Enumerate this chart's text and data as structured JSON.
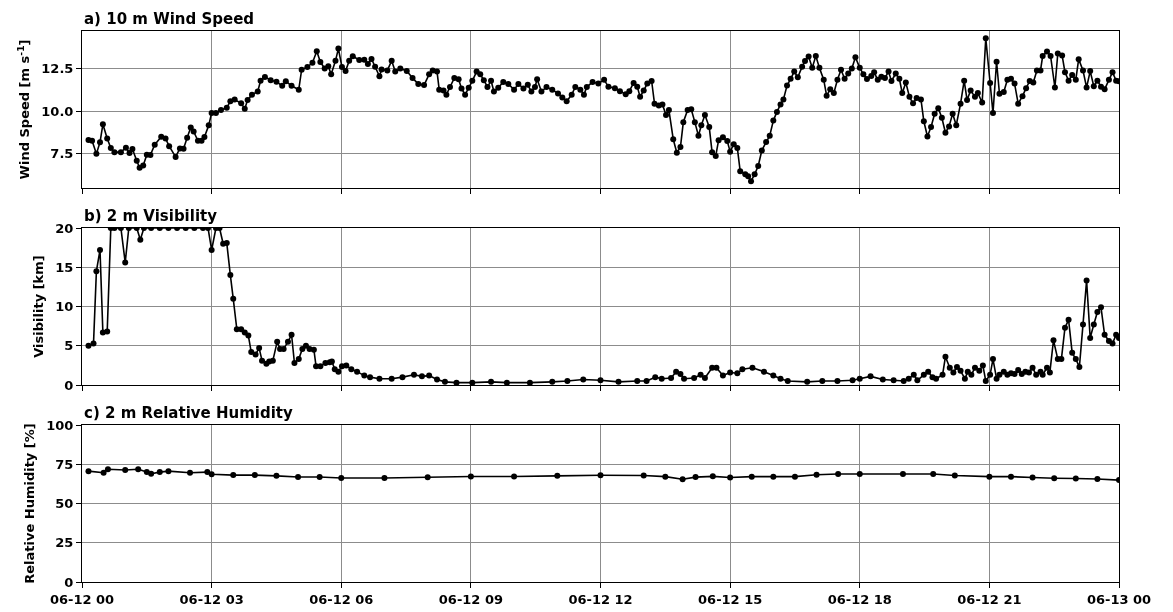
{
  "chart_data": [
    {
      "type": "line",
      "title": "a) 10 m Wind Speed",
      "ylabel": "Wind Speed [m s$^{-1}$]",
      "marker": "circle",
      "line_style": "solid",
      "grid": true,
      "tick_labels": "y",
      "xlim": [
        "--06-12T00:00",
        "--06-13T00:00"
      ],
      "xticks": [
        {
          "value": "--06-12T00:00",
          "label": "06-12 00"
        },
        {
          "value": "--06-12T03:00",
          "label": "06-12 03"
        },
        {
          "value": "--06-12T06:00",
          "label": "06-12 06"
        },
        {
          "value": "--06-12T09:00",
          "label": "06-12 09"
        },
        {
          "value": "--06-12T12:00",
          "label": "06-12 12"
        },
        {
          "value": "--06-12T15:00",
          "label": "06-12 15"
        },
        {
          "value": "--06-12T18:00",
          "label": "06-12 18"
        },
        {
          "value": "--06-12T21:00",
          "label": "06-12 21"
        },
        {
          "value": "--06-13T00:00",
          "label": "06-13 00"
        }
      ],
      "ylim": [
        5.5,
        14.7
      ],
      "yticks": [
        {
          "value": 7.5,
          "label": "7.5"
        },
        {
          "value": 10,
          "label": "10.0"
        },
        {
          "value": 12.5,
          "label": "12.5"
        }
      ],
      "series": [
        {
          "color": "#000000",
          "x": [
            "--06-12T00:09",
            "--06-12T00:14",
            "--06-12T00:20",
            "--06-12T00:25",
            "--06-12T00:29",
            "--06-12T00:35",
            "--06-12T00:40",
            "--06-12T00:45",
            "--06-12T00:54",
            "--06-12T01:01",
            "--06-12T01:06",
            "--06-12T01:10",
            "--06-12T01:16",
            "--06-12T01:20",
            "--06-12T01:25",
            "--06-12T01:30",
            "--06-12T01:35",
            "--06-12T01:41",
            "--06-12T01:50",
            "--06-12T01:56",
            "--06-12T02:01",
            "--06-12T02:10",
            "--06-12T02:16",
            "--06-12T02:21",
            "--06-12T02:26",
            "--06-12T02:31",
            "--06-12T02:35",
            "--06-12T02:41",
            "--06-12T02:46",
            "--06-12T02:50",
            "--06-12T02:56",
            "--06-12T03:00",
            "--06-12T03:06",
            "--06-12T03:13",
            "--06-12T03:21",
            "--06-12T03:26",
            "--06-12T03:32",
            "--06-12T03:41",
            "--06-12T03:46",
            "--06-12T03:50",
            "--06-12T03:56",
            "--06-12T04:04",
            "--06-12T04:08",
            "--06-12T04:14",
            "--06-12T04:22",
            "--06-12T04:30",
            "--06-12T04:38",
            "--06-12T04:43",
            "--06-12T04:51",
            "--06-12T05:01",
            "--06-12T05:05",
            "--06-12T05:13",
            "--06-12T05:20",
            "--06-12T05:26",
            "--06-12T05:31",
            "--06-12T05:37",
            "--06-12T05:42",
            "--06-12T05:46",
            "--06-12T05:52",
            "--06-12T05:56",
            "--06-12T06:01",
            "--06-12T06:06",
            "--06-12T06:11",
            "--06-12T06:16",
            "--06-12T06:25",
            "--06-12T06:32",
            "--06-12T06:37",
            "--06-12T06:42",
            "--06-12T06:47",
            "--06-12T06:53",
            "--06-12T06:56",
            "--06-12T07:04",
            "--06-12T07:10",
            "--06-12T07:15",
            "--06-12T07:22",
            "--06-12T07:31",
            "--06-12T07:39",
            "--06-12T07:47",
            "--06-12T07:55",
            "--06-12T08:02",
            "--06-12T08:07",
            "--06-12T08:13",
            "--06-12T08:16",
            "--06-12T08:22",
            "--06-12T08:26",
            "--06-12T08:31",
            "--06-12T08:37",
            "--06-12T08:43",
            "--06-12T08:47",
            "--06-12T08:52",
            "--06-12T08:57",
            "--06-12T09:02",
            "--06-12T09:08",
            "--06-12T09:13",
            "--06-12T09:18",
            "--06-12T09:23",
            "--06-12T09:28",
            "--06-12T09:32",
            "--06-12T09:38",
            "--06-12T09:45",
            "--06-12T09:52",
            "--06-12T10:00",
            "--06-12T10:06",
            "--06-12T10:13",
            "--06-12T10:19",
            "--06-12T10:24",
            "--06-12T10:29",
            "--06-12T10:32",
            "--06-12T10:38",
            "--06-12T10:45",
            "--06-12T10:53",
            "--06-12T11:01",
            "--06-12T11:07",
            "--06-12T11:13",
            "--06-12T11:20",
            "--06-12T11:25",
            "--06-12T11:32",
            "--06-12T11:37",
            "--06-12T11:41",
            "--06-12T11:49",
            "--06-12T11:57",
            "--06-12T12:05",
            "--06-12T12:11",
            "--06-12T12:20",
            "--06-12T12:27",
            "--06-12T12:35",
            "--06-12T12:40",
            "--06-12T12:46",
            "--06-12T12:51",
            "--06-12T12:55",
            "--06-12T13:00",
            "--06-12T13:05",
            "--06-12T13:11",
            "--06-12T13:15",
            "--06-12T13:21",
            "--06-12T13:26",
            "--06-12T13:31",
            "--06-12T13:35",
            "--06-12T13:41",
            "--06-12T13:46",
            "--06-12T13:51",
            "--06-12T13:55",
            "--06-12T14:01",
            "--06-12T14:06",
            "--06-12T14:11",
            "--06-12T14:16",
            "--06-12T14:20",
            "--06-12T14:25",
            "--06-12T14:31",
            "--06-12T14:35",
            "--06-12T14:40",
            "--06-12T14:44",
            "--06-12T14:50",
            "--06-12T14:56",
            "--06-12T15:00",
            "--06-12T15:05",
            "--06-12T15:10",
            "--06-12T15:14",
            "--06-12T15:21",
            "--06-12T15:25",
            "--06-12T15:29",
            "--06-12T15:34",
            "--06-12T15:39",
            "--06-12T15:44",
            "--06-12T15:50",
            "--06-12T15:55",
            "--06-12T16:00",
            "--06-12T16:05",
            "--06-12T16:10",
            "--06-12T16:14",
            "--06-12T16:19",
            "--06-12T16:24",
            "--06-12T16:29",
            "--06-12T16:34",
            "--06-12T16:40",
            "--06-12T16:44",
            "--06-12T16:49",
            "--06-12T16:54",
            "--06-12T16:59",
            "--06-12T17:04",
            "--06-12T17:10",
            "--06-12T17:14",
            "--06-12T17:19",
            "--06-12T17:24",
            "--06-12T17:29",
            "--06-12T17:34",
            "--06-12T17:39",
            "--06-12T17:44",
            "--06-12T17:49",
            "--06-12T17:54",
            "--06-12T18:00",
            "--06-12T18:05",
            "--06-12T18:10",
            "--06-12T18:16",
            "--06-12T18:20",
            "--06-12T18:25",
            "--06-12T18:30",
            "--06-12T18:35",
            "--06-12T18:40",
            "--06-12T18:44",
            "--06-12T18:50",
            "--06-12T18:55",
            "--06-12T18:59",
            "--06-12T19:04",
            "--06-12T19:09",
            "--06-12T19:14",
            "--06-12T19:19",
            "--06-12T19:25",
            "--06-12T19:29",
            "--06-12T19:34",
            "--06-12T19:39",
            "--06-12T19:44",
            "--06-12T19:49",
            "--06-12T19:54",
            "--06-12T19:59",
            "--06-12T20:04",
            "--06-12T20:09",
            "--06-12T20:14",
            "--06-12T20:20",
            "--06-12T20:25",
            "--06-12T20:29",
            "--06-12T20:34",
            "--06-12T20:40",
            "--06-12T20:44",
            "--06-12T20:50",
            "--06-12T20:55",
            "--06-12T21:01",
            "--06-12T21:05",
            "--06-12T21:10",
            "--06-12T21:14",
            "--06-12T21:20",
            "--06-12T21:25",
            "--06-12T21:30",
            "--06-12T21:35",
            "--06-12T21:40",
            "--06-12T21:46",
            "--06-12T21:51",
            "--06-12T21:56",
            "--06-12T22:01",
            "--06-12T22:06",
            "--06-12T22:11",
            "--06-12T22:14",
            "--06-12T22:20",
            "--06-12T22:25",
            "--06-12T22:31",
            "--06-12T22:35",
            "--06-12T22:41",
            "--06-12T22:45",
            "--06-12T22:50",
            "--06-12T22:55",
            "--06-12T23:00",
            "--06-12T23:04",
            "--06-12T23:10",
            "--06-12T23:15",
            "--06-12T23:20",
            "--06-12T23:25",
            "--06-12T23:30",
            "--06-12T23:35",
            "--06-12T23:40",
            "--06-12T23:46",
            "--06-12T23:51",
            "--06-12T23:56",
            "--06-13T00:00"
          ],
          "values": [
            8.31,
            8.27,
            7.5,
            8.18,
            9.23,
            8.4,
            7.84,
            7.6,
            7.6,
            7.86,
            7.55,
            7.79,
            7.1,
            6.69,
            6.82,
            7.45,
            7.43,
            8.04,
            8.51,
            8.4,
            7.95,
            7.32,
            7.82,
            7.8,
            8.45,
            9.05,
            8.81,
            8.27,
            8.27,
            8.49,
            9.17,
            9.9,
            9.89,
            10.07,
            10.2,
            10.59,
            10.68,
            10.47,
            10.14,
            10.65,
            10.97,
            11.15,
            11.78,
            12.0,
            11.82,
            11.73,
            11.49,
            11.76,
            11.49,
            11.26,
            12.43,
            12.59,
            12.84,
            13.51,
            12.88,
            12.5,
            12.64,
            12.16,
            12.95,
            13.67,
            12.59,
            12.36,
            12.95,
            13.22,
            13.0,
            13.02,
            12.77,
            13.06,
            12.61,
            12.05,
            12.45,
            12.39,
            12.95,
            12.32,
            12.5,
            12.36,
            11.94,
            11.6,
            11.53,
            12.16,
            12.39,
            12.32,
            11.26,
            11.22,
            10.97,
            11.42,
            11.94,
            11.87,
            11.33,
            10.97,
            11.37,
            11.78,
            12.32,
            12.16,
            11.82,
            11.42,
            11.78,
            11.15,
            11.37,
            11.71,
            11.6,
            11.26,
            11.6,
            11.33,
            11.55,
            11.15,
            11.42,
            11.87,
            11.15,
            11.42,
            11.26,
            11.04,
            10.81,
            10.59,
            10.97,
            11.42,
            11.26,
            10.97,
            11.42,
            11.71,
            11.62,
            11.84,
            11.44,
            11.35,
            11.17,
            11.0,
            11.17,
            11.66,
            11.44,
            10.84,
            11.22,
            11.62,
            11.77,
            10.44,
            10.33,
            10.4,
            9.78,
            10.07,
            8.36,
            7.57,
            7.9,
            9.36,
            10.07,
            10.11,
            9.36,
            8.56,
            9.18,
            9.78,
            9.07,
            7.59,
            7.37,
            8.3,
            8.47,
            8.25,
            7.63,
            8.07,
            7.85,
            6.48,
            6.3,
            6.19,
            5.9,
            6.3,
            6.79,
            7.7,
            8.19,
            8.56,
            9.45,
            9.96,
            10.4,
            10.69,
            11.5,
            11.9,
            12.32,
            11.99,
            12.61,
            12.94,
            13.21,
            12.54,
            13.23,
            12.54,
            11.84,
            10.91,
            11.28,
            11.06,
            11.84,
            12.43,
            11.9,
            12.21,
            12.5,
            13.16,
            12.54,
            12.17,
            11.88,
            12.06,
            12.28,
            11.84,
            12.02,
            11.95,
            12.32,
            11.77,
            12.21,
            11.9,
            11.06,
            11.68,
            10.84,
            10.46,
            10.77,
            10.69,
            9.41,
            8.52,
            9.07,
            9.85,
            10.18,
            9.62,
            8.74,
            9.11,
            9.85,
            9.18,
            10.44,
            11.79,
            10.66,
            11.22,
            10.84,
            11.06,
            10.51,
            14.27,
            11.66,
            9.89,
            12.9,
            11.02,
            11.13,
            11.84,
            11.9,
            11.62,
            10.44,
            10.88,
            11.35,
            11.77,
            11.68,
            12.39,
            12.39,
            13.23,
            13.5,
            13.23,
            11.39,
            13.38,
            13.27,
            12.28,
            11.79,
            12.12,
            11.84,
            13.05,
            12.39,
            11.39,
            12.35,
            11.46,
            11.79,
            11.44,
            11.28,
            11.84,
            12.28,
            11.79,
            11.75
          ]
        }
      ]
    },
    {
      "type": "line",
      "title": "b) 2 m Visibility",
      "ylabel": "Visibility [km]",
      "marker": "circle",
      "line_style": "solid",
      "grid": true,
      "tick_labels": "y",
      "xlim": [
        "--06-12T00:00",
        "--06-13T00:00"
      ],
      "xticks": [
        {
          "value": "--06-12T00:00",
          "label": "06-12 00"
        },
        {
          "value": "--06-12T03:00",
          "label": "06-12 03"
        },
        {
          "value": "--06-12T06:00",
          "label": "06-12 06"
        },
        {
          "value": "--06-12T09:00",
          "label": "06-12 09"
        },
        {
          "value": "--06-12T12:00",
          "label": "06-12 12"
        },
        {
          "value": "--06-12T15:00",
          "label": "06-12 15"
        },
        {
          "value": "--06-12T18:00",
          "label": "06-12 18"
        },
        {
          "value": "--06-12T21:00",
          "label": "06-12 21"
        },
        {
          "value": "--06-13T00:00",
          "label": "06-13 00"
        }
      ],
      "ylim": [
        0,
        20
      ],
      "yticks": [
        0,
        5,
        10,
        15,
        20
      ],
      "series": [
        {
          "color": "#000000",
          "x": [
            "--06-12T00:09",
            "--06-12T00:16",
            "--06-12T00:20",
            "--06-12T00:25",
            "--06-12T00:29",
            "--06-12T00:35",
            "--06-12T00:40",
            "--06-12T00:45",
            "--06-12T00:54",
            "--06-12T01:00",
            "--06-12T01:05",
            "--06-12T01:16",
            "--06-12T01:21",
            "--06-12T01:26",
            "--06-12T01:36",
            "--06-12T01:48",
            "--06-12T02:00",
            "--06-12T02:12",
            "--06-12T02:24",
            "--06-12T02:36",
            "--06-12T02:48",
            "--06-12T02:55",
            "--06-12T03:00",
            "--06-12T03:06",
            "--06-12T03:11",
            "--06-12T03:16",
            "--06-12T03:21",
            "--06-12T03:26",
            "--06-12T03:30",
            "--06-12T03:35",
            "--06-12T03:41",
            "--06-12T03:46",
            "--06-12T03:51",
            "--06-12T03:55",
            "--06-12T04:01",
            "--06-12T04:06",
            "--06-12T04:10",
            "--06-12T04:16",
            "--06-12T04:20",
            "--06-12T04:25",
            "--06-12T04:31",
            "--06-12T04:35",
            "--06-12T04:40",
            "--06-12T04:46",
            "--06-12T04:51",
            "--06-12T04:55",
            "--06-12T05:01",
            "--06-12T05:06",
            "--06-12T05:11",
            "--06-12T05:16",
            "--06-12T05:22",
            "--06-12T05:25",
            "--06-12T05:31",
            "--06-12T05:38",
            "--06-12T05:44",
            "--06-12T05:47",
            "--06-12T05:51",
            "--06-12T05:56",
            "--06-12T06:01",
            "--06-12T06:07",
            "--06-12T06:14",
            "--06-12T06:22",
            "--06-12T06:32",
            "--06-12T06:40",
            "--06-12T06:53",
            "--06-12T07:10",
            "--06-12T07:25",
            "--06-12T07:41",
            "--06-12T07:52",
            "--06-12T08:02",
            "--06-12T08:13",
            "--06-12T08:24",
            "--06-12T08:40",
            "--06-12T09:02",
            "--06-12T09:28",
            "--06-12T09:50",
            "--06-12T10:22",
            "--06-12T10:53",
            "--06-12T11:14",
            "--06-12T11:36",
            "--06-12T12:00",
            "--06-12T12:25",
            "--06-12T12:51",
            "--06-12T13:04",
            "--06-12T13:16",
            "--06-12T13:25",
            "--06-12T13:38",
            "--06-12T13:45",
            "--06-12T13:51",
            "--06-12T13:56",
            "--06-12T14:10",
            "--06-12T14:19",
            "--06-12T14:25",
            "--06-12T14:35",
            "--06-12T14:41",
            "--06-12T14:50",
            "--06-12T15:00",
            "--06-12T15:10",
            "--06-12T15:17",
            "--06-12T15:31",
            "--06-12T15:47",
            "--06-12T16:00",
            "--06-12T16:10",
            "--06-12T16:20",
            "--06-12T16:47",
            "--06-12T17:08",
            "--06-12T17:29",
            "--06-12T17:50",
            "--06-12T18:00",
            "--06-12T18:15",
            "--06-12T18:32",
            "--06-12T18:47",
            "--06-12T19:01",
            "--06-12T19:08",
            "--06-12T19:15",
            "--06-12T19:20",
            "--06-12T19:29",
            "--06-12T19:35",
            "--06-12T19:41",
            "--06-12T19:46",
            "--06-12T19:55",
            "--06-12T19:59",
            "--06-12T20:05",
            "--06-12T20:10",
            "--06-12T20:15",
            "--06-12T20:20",
            "--06-12T20:26",
            "--06-12T20:30",
            "--06-12T20:35",
            "--06-12T20:40",
            "--06-12T20:46",
            "--06-12T20:51",
            "--06-12T20:55",
            "--06-12T21:01",
            "--06-12T21:05",
            "--06-12T21:10",
            "--06-12T21:14",
            "--06-12T21:20",
            "--06-12T21:25",
            "--06-12T21:30",
            "--06-12T21:35",
            "--06-12T21:40",
            "--06-12T21:45",
            "--06-12T21:50",
            "--06-12T21:55",
            "--06-12T22:00",
            "--06-12T22:05",
            "--06-12T22:11",
            "--06-12T22:14",
            "--06-12T22:20",
            "--06-12T22:24",
            "--06-12T22:29",
            "--06-12T22:35",
            "--06-12T22:40",
            "--06-12T22:45",
            "--06-12T22:50",
            "--06-12T22:55",
            "--06-12T23:00",
            "--06-12T23:05",
            "--06-12T23:10",
            "--06-12T23:15",
            "--06-12T23:20",
            "--06-12T23:25",
            "--06-12T23:30",
            "--06-12T23:35",
            "--06-12T23:40",
            "--06-12T23:46",
            "--06-12T23:51",
            "--06-12T23:56",
            "--06-13T00:00"
          ],
          "values": [
            5.0,
            5.3,
            14.5,
            17.2,
            6.7,
            6.8,
            20,
            20,
            20,
            15.6,
            20,
            20,
            18.5,
            20,
            20,
            20,
            20,
            20,
            20,
            20,
            20,
            20,
            17.2,
            20,
            20,
            18.0,
            18.1,
            14.0,
            11.0,
            7.1,
            7.1,
            6.7,
            6.3,
            4.2,
            3.9,
            4.7,
            3.1,
            2.7,
            3.0,
            3.1,
            5.5,
            4.6,
            4.6,
            5.5,
            6.4,
            2.8,
            3.3,
            4.6,
            5.0,
            4.6,
            4.5,
            2.4,
            2.4,
            2.8,
            2.9,
            3.0,
            2.0,
            1.7,
            2.4,
            2.5,
            2.0,
            1.7,
            1.2,
            1.0,
            0.8,
            0.8,
            1.0,
            1.3,
            1.1,
            1.2,
            0.7,
            0.4,
            0.3,
            0.3,
            0.4,
            0.3,
            0.3,
            0.4,
            0.5,
            0.7,
            0.6,
            0.4,
            0.5,
            0.5,
            1.0,
            0.8,
            0.9,
            1.7,
            1.4,
            0.8,
            0.9,
            1.3,
            0.9,
            2.2,
            2.2,
            1.2,
            1.6,
            1.5,
            2.0,
            2.2,
            1.7,
            1.2,
            0.8,
            0.5,
            0.4,
            0.5,
            0.5,
            0.6,
            0.8,
            1.1,
            0.7,
            0.6,
            0.5,
            0.8,
            1.3,
            0.6,
            1.3,
            1.7,
            1.0,
            0.8,
            1.3,
            3.6,
            2.2,
            1.6,
            2.3,
            1.8,
            0.8,
            1.7,
            1.3,
            2.2,
            1.8,
            2.5,
            0.5,
            1.3,
            3.3,
            0.8,
            1.3,
            1.7,
            1.3,
            1.5,
            1.4,
            1.9,
            1.4,
            1.7,
            1.6,
            2.2,
            1.3,
            1.7,
            1.3,
            2.2,
            1.6,
            5.7,
            3.3,
            3.3,
            7.3,
            8.3,
            4.1,
            3.3,
            2.3,
            7.7,
            13.3,
            6.0,
            7.7,
            9.3,
            9.9,
            6.4,
            5.6,
            5.3,
            6.4,
            6.0
          ]
        }
      ]
    },
    {
      "type": "line",
      "title": "c) 2 m Relative Humidity",
      "ylabel": "Relative Humidity [%]",
      "marker": "circle",
      "line_style": "solid",
      "grid": true,
      "xlim": [
        "--06-12T00:00",
        "--06-13T00:00"
      ],
      "xticks": [
        {
          "value": "--06-12T00:00",
          "label": "06-12 00"
        },
        {
          "value": "--06-12T03:00",
          "label": "06-12 03"
        },
        {
          "value": "--06-12T06:00",
          "label": "06-12 06"
        },
        {
          "value": "--06-12T09:00",
          "label": "06-12 09"
        },
        {
          "value": "--06-12T12:00",
          "label": "06-12 12"
        },
        {
          "value": "--06-12T15:00",
          "label": "06-12 15"
        },
        {
          "value": "--06-12T18:00",
          "label": "06-12 18"
        },
        {
          "value": "--06-12T21:00",
          "label": "06-12 21"
        },
        {
          "value": "--06-13T00:00",
          "label": "06-13 00"
        }
      ],
      "ylim": [
        0,
        100
      ],
      "yticks": [
        0,
        25,
        50,
        75,
        100
      ],
      "series": [
        {
          "color": "#000000",
          "x": [
            "--06-12T00:09",
            "--06-12T00:30",
            "--06-12T00:36",
            "--06-12T01:00",
            "--06-12T01:18",
            "--06-12T01:30",
            "--06-12T01:36",
            "--06-12T01:48",
            "--06-12T02:00",
            "--06-12T02:30",
            "--06-12T02:54",
            "--06-12T03:00",
            "--06-12T03:30",
            "--06-12T04:00",
            "--06-12T04:30",
            "--06-12T05:00",
            "--06-12T05:30",
            "--06-12T06:00",
            "--06-12T07:00",
            "--06-12T08:00",
            "--06-12T09:00",
            "--06-12T10:00",
            "--06-12T11:00",
            "--06-12T12:00",
            "--06-12T13:00",
            "--06-12T13:30",
            "--06-12T13:54",
            "--06-12T14:12",
            "--06-12T14:36",
            "--06-12T15:00",
            "--06-12T15:30",
            "--06-12T16:00",
            "--06-12T16:30",
            "--06-12T17:00",
            "--06-12T17:30",
            "--06-12T18:00",
            "--06-12T19:00",
            "--06-12T19:42",
            "--06-12T20:12",
            "--06-12T21:00",
            "--06-12T21:30",
            "--06-12T22:00",
            "--06-12T22:30",
            "--06-12T23:00",
            "--06-12T23:30",
            "--06-13T00:00"
          ],
          "values": [
            70.6,
            69.6,
            71.8,
            71.3,
            71.8,
            70.0,
            68.9,
            70.0,
            70.6,
            69.6,
            70.0,
            68.6,
            68.1,
            68.1,
            67.6,
            66.9,
            66.9,
            66.2,
            66.2,
            66.7,
            67.2,
            67.2,
            67.6,
            68.0,
            67.8,
            67.1,
            65.4,
            66.8,
            67.3,
            66.6,
            67.1,
            67.1,
            67.1,
            68.3,
            68.8,
            68.8,
            68.8,
            68.8,
            67.8,
            67.1,
            67.1,
            66.6,
            66.1,
            65.9,
            65.6,
            64.9
          ]
        }
      ]
    }
  ]
}
